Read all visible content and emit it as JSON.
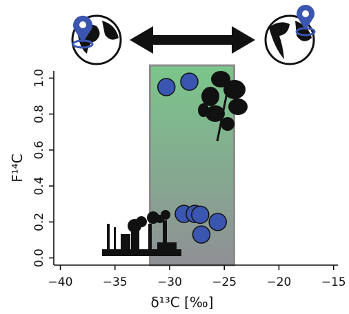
{
  "chart_data": {
    "type": "scatter",
    "xlabel": "δ¹³C [‰]",
    "ylabel": "F¹⁴C",
    "xlim": [
      -40.6,
      -14.6
    ],
    "ylim": [
      -0.04,
      1.04
    ],
    "xticks": [
      {
        "value": -40,
        "label": "−40"
      },
      {
        "value": -35,
        "label": "−35"
      },
      {
        "value": -30,
        "label": "−30"
      },
      {
        "value": -25,
        "label": "−25"
      },
      {
        "value": -20,
        "label": "−20"
      },
      {
        "value": -15,
        "label": "−15"
      }
    ],
    "yticks": [
      {
        "value": 0,
        "label": "0.0"
      },
      0.2,
      0.4,
      0.6,
      0.8,
      {
        "value": 1,
        "label": "1.0"
      }
    ],
    "shaded_region": {
      "x": [
        -31.8,
        -24.1
      ],
      "top_color": "#7ac68a",
      "bottom_color": "#8f9095"
    },
    "series": [
      {
        "color": "#3a56b0",
        "x": [
          -30.3,
          -28.2,
          -28.7,
          -27.7,
          -27.2,
          -25.6,
          -27.1
        ],
        "values": [
          0.95,
          0.98,
          0.245,
          0.245,
          0.24,
          0.2,
          0.13
        ]
      }
    ]
  }
}
